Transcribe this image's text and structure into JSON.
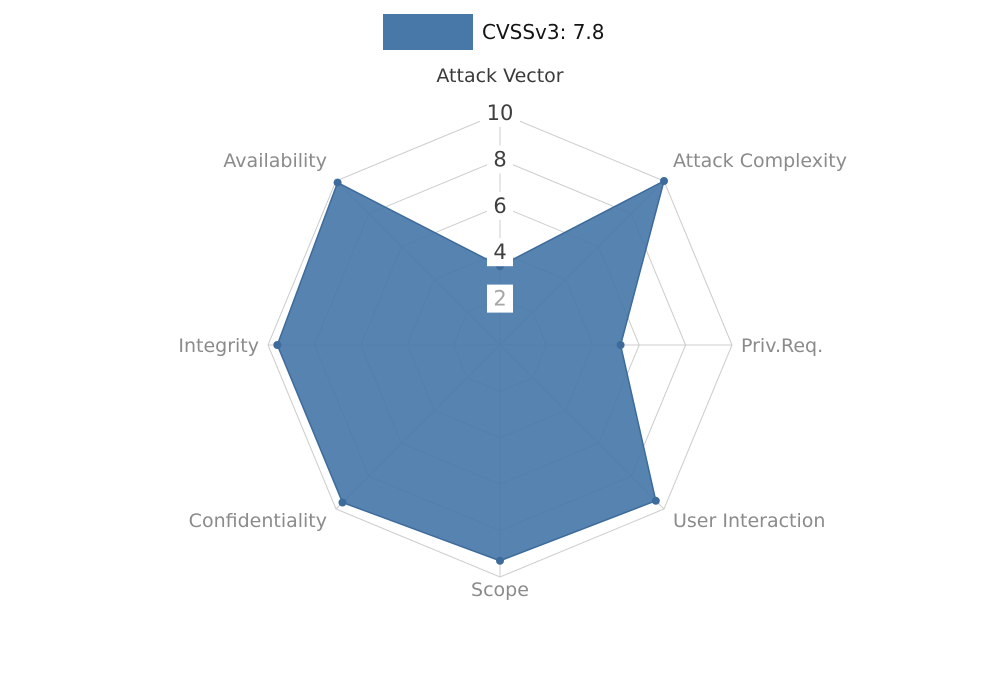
{
  "legend": {
    "label": "CVSSv3: 7.8",
    "color": "#4878a8"
  },
  "chart_data": {
    "type": "radar",
    "title": "CVSSv3: 7.8",
    "axes": [
      "Attack Vector",
      "Attack Complexity",
      "Priv.Req.",
      "User Interaction",
      "Scope",
      "Confidentiality",
      "Integrity",
      "Availability"
    ],
    "series": [
      {
        "name": "CVSSv3: 7.8",
        "values": [
          3.4,
          10,
          5.2,
          9.5,
          9.3,
          9.6,
          9.6,
          9.9
        ],
        "color": "#4878a8"
      }
    ],
    "scale": {
      "min": 0,
      "max": 10,
      "ticks": [
        10,
        8,
        6,
        4,
        2
      ]
    },
    "highlighted_axis": "Attack Vector",
    "legend_position": "top-center",
    "grid": true,
    "grid_levels": [
      2,
      4,
      6,
      8,
      10
    ],
    "colors": {
      "fill": "#4878a8",
      "stroke": "#3d6b9b",
      "grid": "#cccccc",
      "axis_label": "#8b8b8b",
      "axis_label_highlight": "#3a3a3a",
      "tick_label": "#3f3f3f",
      "tick_label_faint": "#a6a6a6",
      "tick_box": "#ffffff"
    }
  }
}
